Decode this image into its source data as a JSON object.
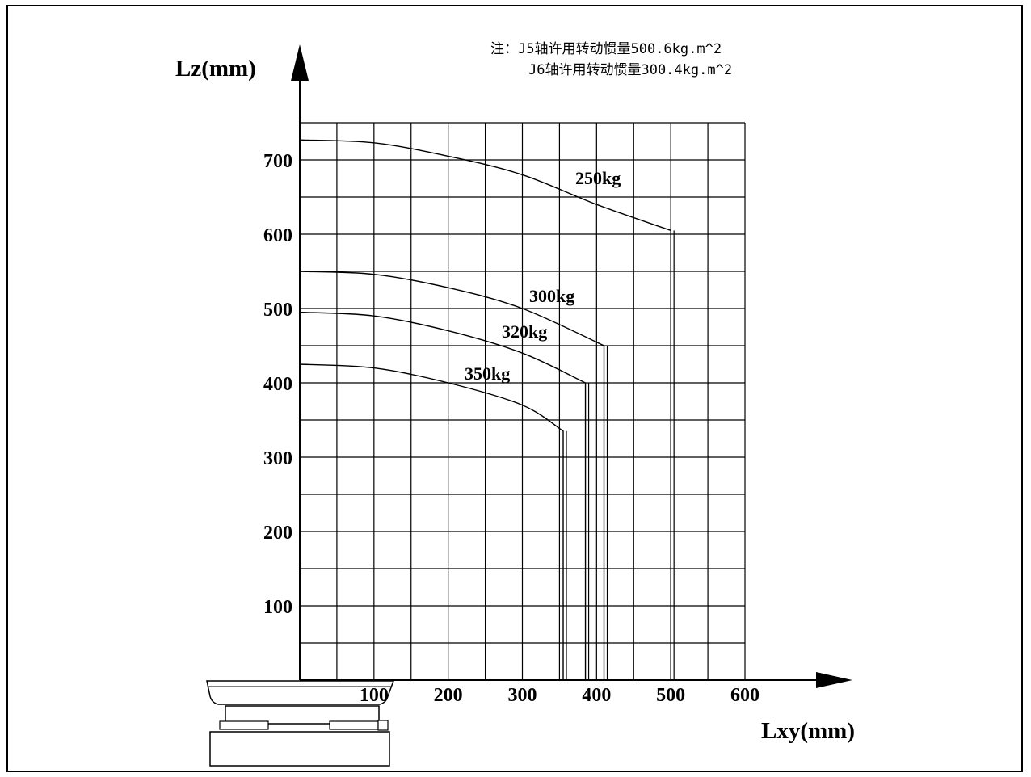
{
  "note": {
    "line1": "注：J5轴许用转动惯量500.6kg.m^2",
    "line2": "J6轴许用转动惯量300.4kg.m^2"
  },
  "chart_data": {
    "type": "line",
    "title": "",
    "xlabel": "Lxy(mm)",
    "ylabel": "Lz(mm)",
    "xlim": [
      0,
      600
    ],
    "ylim": [
      0,
      750
    ],
    "grid": true,
    "x_ticks": [
      100,
      200,
      300,
      400,
      500,
      600
    ],
    "y_ticks": [
      100,
      200,
      300,
      400,
      500,
      600,
      700
    ],
    "series": [
      {
        "name": "250kg",
        "points": [
          [
            0,
            727
          ],
          [
            100,
            723
          ],
          [
            200,
            705
          ],
          [
            300,
            680
          ],
          [
            400,
            640
          ],
          [
            500,
            605
          ],
          [
            500,
            0
          ]
        ]
      },
      {
        "name": "300kg",
        "points": [
          [
            0,
            550
          ],
          [
            100,
            546
          ],
          [
            200,
            528
          ],
          [
            300,
            500
          ],
          [
            410,
            450
          ],
          [
            410,
            0
          ]
        ]
      },
      {
        "name": "320kg",
        "points": [
          [
            0,
            495
          ],
          [
            100,
            490
          ],
          [
            200,
            470
          ],
          [
            300,
            440
          ],
          [
            385,
            400
          ],
          [
            385,
            0
          ]
        ]
      },
      {
        "name": "350kg",
        "points": [
          [
            0,
            425
          ],
          [
            100,
            420
          ],
          [
            200,
            400
          ],
          [
            300,
            370
          ],
          [
            355,
            335
          ],
          [
            355,
            0
          ]
        ]
      }
    ]
  }
}
